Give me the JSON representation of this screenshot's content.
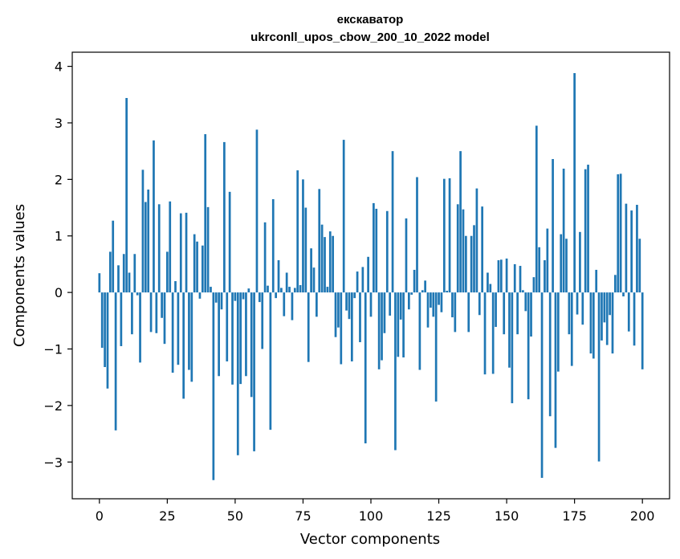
{
  "chart_data": {
    "type": "bar",
    "title": "екскаватор",
    "subtitle": "ukrconll_upos_cbow_200_10_2022 model",
    "xlabel": "Vector components",
    "ylabel": "Components values",
    "xlim": [
      -10,
      210
    ],
    "ylim": [
      -3.65,
      4.25
    ],
    "xticks": [
      0,
      25,
      50,
      75,
      100,
      125,
      150,
      175,
      200
    ],
    "yticks": [
      -3,
      -2,
      -1,
      0,
      1,
      2,
      3,
      4
    ],
    "ytick_labels": [
      "−3",
      "−2",
      "−1",
      "0",
      "1",
      "2",
      "3",
      "4"
    ],
    "grid": false,
    "bar_color": "#1f77b4",
    "values": [
      0.34,
      -0.98,
      -1.32,
      -1.7,
      0.72,
      1.27,
      -2.44,
      0.48,
      -0.95,
      0.68,
      3.44,
      0.35,
      -0.74,
      0.68,
      -0.05,
      -1.24,
      2.17,
      1.6,
      1.82,
      -0.7,
      2.69,
      -0.72,
      1.56,
      -0.45,
      -0.91,
      0.72,
      1.61,
      -1.42,
      0.2,
      -1.28,
      1.4,
      -1.88,
      1.41,
      -1.37,
      -1.58,
      1.03,
      0.9,
      -0.11,
      0.83,
      2.8,
      1.51,
      0.1,
      -3.32,
      -0.18,
      -1.48,
      -0.3,
      2.66,
      -1.22,
      1.78,
      -1.63,
      -0.15,
      -2.88,
      -1.62,
      -0.12,
      -1.48,
      0.07,
      -1.85,
      -2.81,
      2.88,
      -0.17,
      -1.0,
      1.24,
      0.12,
      -2.43,
      1.65,
      -0.1,
      0.57,
      0.08,
      -0.42,
      0.35,
      0.1,
      -0.49,
      0.08,
      2.16,
      0.13,
      2.0,
      1.5,
      -1.23,
      0.78,
      0.44,
      -0.43,
      1.83,
      1.2,
      0.98,
      0.1,
      1.08,
      1.0,
      -0.79,
      -0.62,
      -1.27,
      2.7,
      -0.32,
      -0.47,
      -1.22,
      -0.1,
      0.37,
      -0.88,
      0.45,
      -2.67,
      0.63,
      -0.43,
      1.58,
      1.48,
      -1.36,
      -1.2,
      -0.72,
      1.44,
      -0.41,
      2.5,
      -2.79,
      -1.14,
      -0.48,
      -1.15,
      1.31,
      -0.3,
      -0.04,
      0.4,
      2.04,
      -1.37,
      0.04,
      0.21,
      -0.62,
      -0.27,
      -0.43,
      -1.93,
      -0.22,
      -0.35,
      2.01,
      0.03,
      2.02,
      -0.44,
      -0.7,
      1.56,
      2.5,
      1.47,
      1.0,
      -0.7,
      1.0,
      1.19,
      1.84,
      -0.4,
      1.52,
      -1.45,
      0.35,
      0.15,
      -1.44,
      -0.61,
      0.57,
      0.58,
      -0.74,
      0.6,
      -1.33,
      -1.96,
      0.5,
      -0.74,
      0.47,
      0.04,
      -0.33,
      -1.89,
      -0.78,
      0.27,
      2.95,
      0.8,
      -3.28,
      0.57,
      1.13,
      -2.19,
      2.36,
      -2.75,
      -1.4,
      1.03,
      2.19,
      0.95,
      -0.74,
      -1.3,
      3.88,
      -0.39,
      1.07,
      -0.57,
      2.18,
      2.26,
      -1.08,
      -1.17,
      0.4,
      -2.99,
      -0.85,
      -0.53,
      -0.93,
      -0.4,
      -1.08,
      0.31,
      2.09,
      2.1,
      -0.07,
      1.57,
      -0.69,
      1.45,
      -0.94,
      1.55,
      0.95,
      -1.36
    ]
  }
}
